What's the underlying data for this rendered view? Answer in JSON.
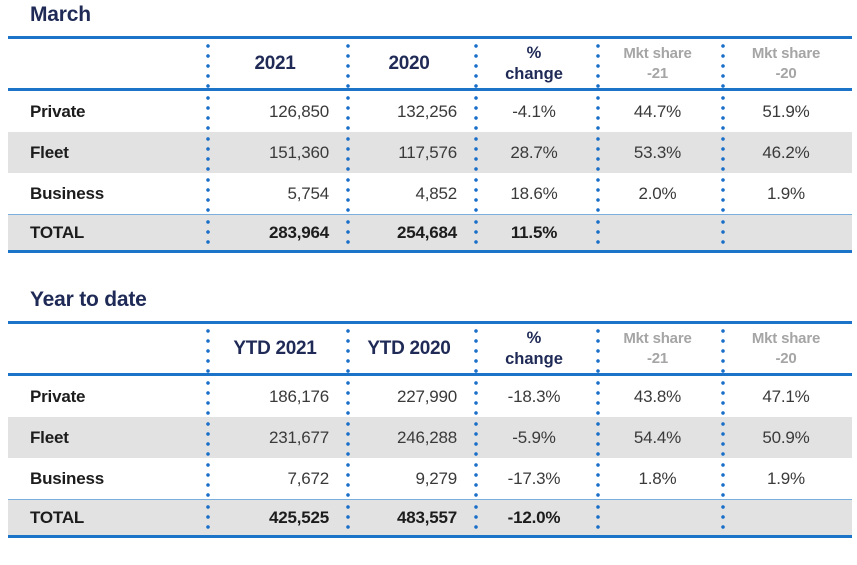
{
  "colors": {
    "line_blue": "#1b74c8",
    "dot_blue": "#1a6fc9",
    "light_blue": "#7aaedd",
    "navy": "#1f2a56",
    "gray_head": "#a5a5a5",
    "row_shade": "#e2e2e2"
  },
  "chart_data": [
    {
      "type": "table",
      "title": "March",
      "columns": [
        "",
        "2021",
        "2020",
        "% change",
        "Mkt share -21",
        "Mkt share -20"
      ],
      "rows": [
        [
          "Private",
          "126,850",
          "132,256",
          "-4.1%",
          "44.7%",
          "51.9%"
        ],
        [
          "Fleet",
          "151,360",
          "117,576",
          "28.7%",
          "53.3%",
          "46.2%"
        ],
        [
          "Business",
          "5,754",
          "4,852",
          "18.6%",
          "2.0%",
          "1.9%"
        ],
        [
          "TOTAL",
          "283,964",
          "254,684",
          "11.5%",
          "",
          ""
        ]
      ]
    },
    {
      "type": "table",
      "title": "Year to date",
      "columns": [
        "",
        "YTD 2021",
        "YTD 2020",
        "% change",
        "Mkt share -21",
        "Mkt share -20"
      ],
      "rows": [
        [
          "Private",
          "186,176",
          "227,990",
          "-18.3%",
          "43.8%",
          "47.1%"
        ],
        [
          "Fleet",
          "231,677",
          "246,288",
          "-5.9%",
          "54.4%",
          "50.9%"
        ],
        [
          "Business",
          "7,672",
          "9,279",
          "-17.3%",
          "1.8%",
          "1.9%"
        ],
        [
          "TOTAL",
          "425,525",
          "483,557",
          "-12.0%",
          "",
          ""
        ]
      ]
    }
  ]
}
